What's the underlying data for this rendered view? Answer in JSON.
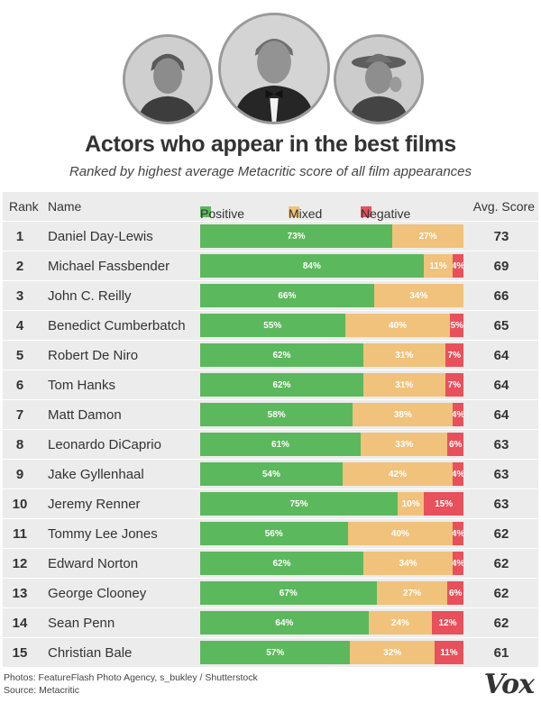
{
  "title": "Actors who appear in the best films",
  "subtitle": "Ranked by highest average Metacritic score of all film appearances",
  "header": {
    "rank": "Rank",
    "name": "Name",
    "score": "Avg. Score"
  },
  "colors": {
    "positive": "#5cb85c",
    "mixed": "#f0c27b",
    "negative": "#e8505b"
  },
  "chart_data": {
    "type": "bar",
    "stacked": true,
    "title": "Actors who appear in the best films",
    "subtitle": "Ranked by highest average Metacritic score of all film appearances",
    "categories": [
      "Daniel Day-Lewis",
      "Michael Fassbender",
      "John C. Reilly",
      "Benedict Cumberbatch",
      "Robert De Niro",
      "Tom Hanks",
      "Matt Damon",
      "Leonardo DiCaprio",
      "Jake Gyllenhaal",
      "Jeremy Renner",
      "Tommy Lee Jones",
      "Edward Norton",
      "George Clooney",
      "Sean Penn",
      "Christian Bale"
    ],
    "ranks": [
      "1",
      "2",
      "3",
      "4",
      "5",
      "6",
      "7",
      "8",
      "9",
      "10",
      "11",
      "12",
      "13",
      "14",
      "15"
    ],
    "series": [
      {
        "name": "Positive",
        "values": [
          73,
          84,
          66,
          55,
          62,
          62,
          58,
          61,
          54,
          75,
          56,
          62,
          67,
          64,
          57
        ]
      },
      {
        "name": "Mixed",
        "values": [
          27,
          11,
          34,
          40,
          31,
          31,
          38,
          33,
          42,
          10,
          40,
          34,
          27,
          24,
          32
        ]
      },
      {
        "name": "Negative",
        "values": [
          0,
          4,
          0,
          5,
          7,
          7,
          4,
          6,
          4,
          15,
          4,
          4,
          6,
          12,
          11
        ]
      }
    ],
    "avg_scores": [
      73,
      69,
      66,
      65,
      64,
      64,
      64,
      63,
      63,
      63,
      62,
      62,
      62,
      62,
      61
    ],
    "legend_position": "top"
  },
  "footer": {
    "photos": "Photos: FeatureFlash Photo Agency, s_bukley / Shutterstock",
    "source": "Source: Metacritic",
    "logo": "Vox"
  }
}
